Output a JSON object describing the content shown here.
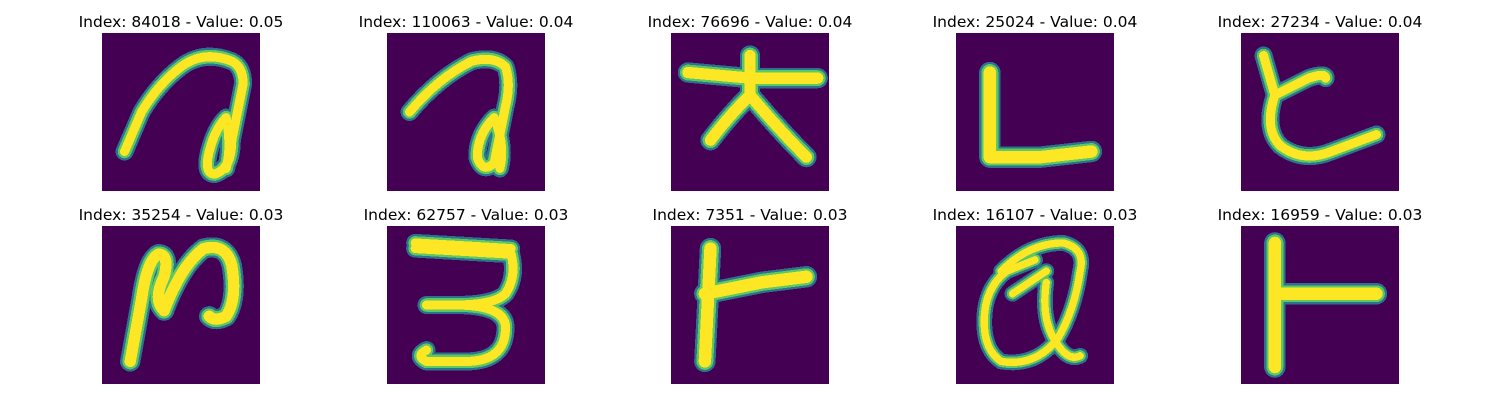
{
  "colors": {
    "background": "#440154",
    "stroke_dark": "#2c728e",
    "stroke_mid": "#5ec962",
    "stroke_core": "#fde725"
  },
  "panels": [
    {
      "title": "Index: 84018 - Value: 0.05",
      "glyph": "glyph-a-loop"
    },
    {
      "title": "Index: 110063 - Value: 0.04",
      "glyph": "glyph-a-loop-small"
    },
    {
      "title": "Index: 76696 - Value: 0.04",
      "glyph": "glyph-tree"
    },
    {
      "title": "Index: 25024 - Value: 0.04",
      "glyph": "glyph-l"
    },
    {
      "title": "Index: 27234 - Value: 0.04",
      "glyph": "glyph-ko"
    },
    {
      "title": "Index: 35254 - Value: 0.03",
      "glyph": "glyph-n"
    },
    {
      "title": "Index: 62757 - Value: 0.03",
      "glyph": "glyph-three"
    },
    {
      "title": "Index: 7351 - Value: 0.03",
      "glyph": "glyph-t-right"
    },
    {
      "title": "Index: 16107 - Value: 0.03",
      "glyph": "glyph-a-round"
    },
    {
      "title": "Index: 16959 - Value: 0.03",
      "glyph": "glyph-t-right-tall"
    }
  ]
}
